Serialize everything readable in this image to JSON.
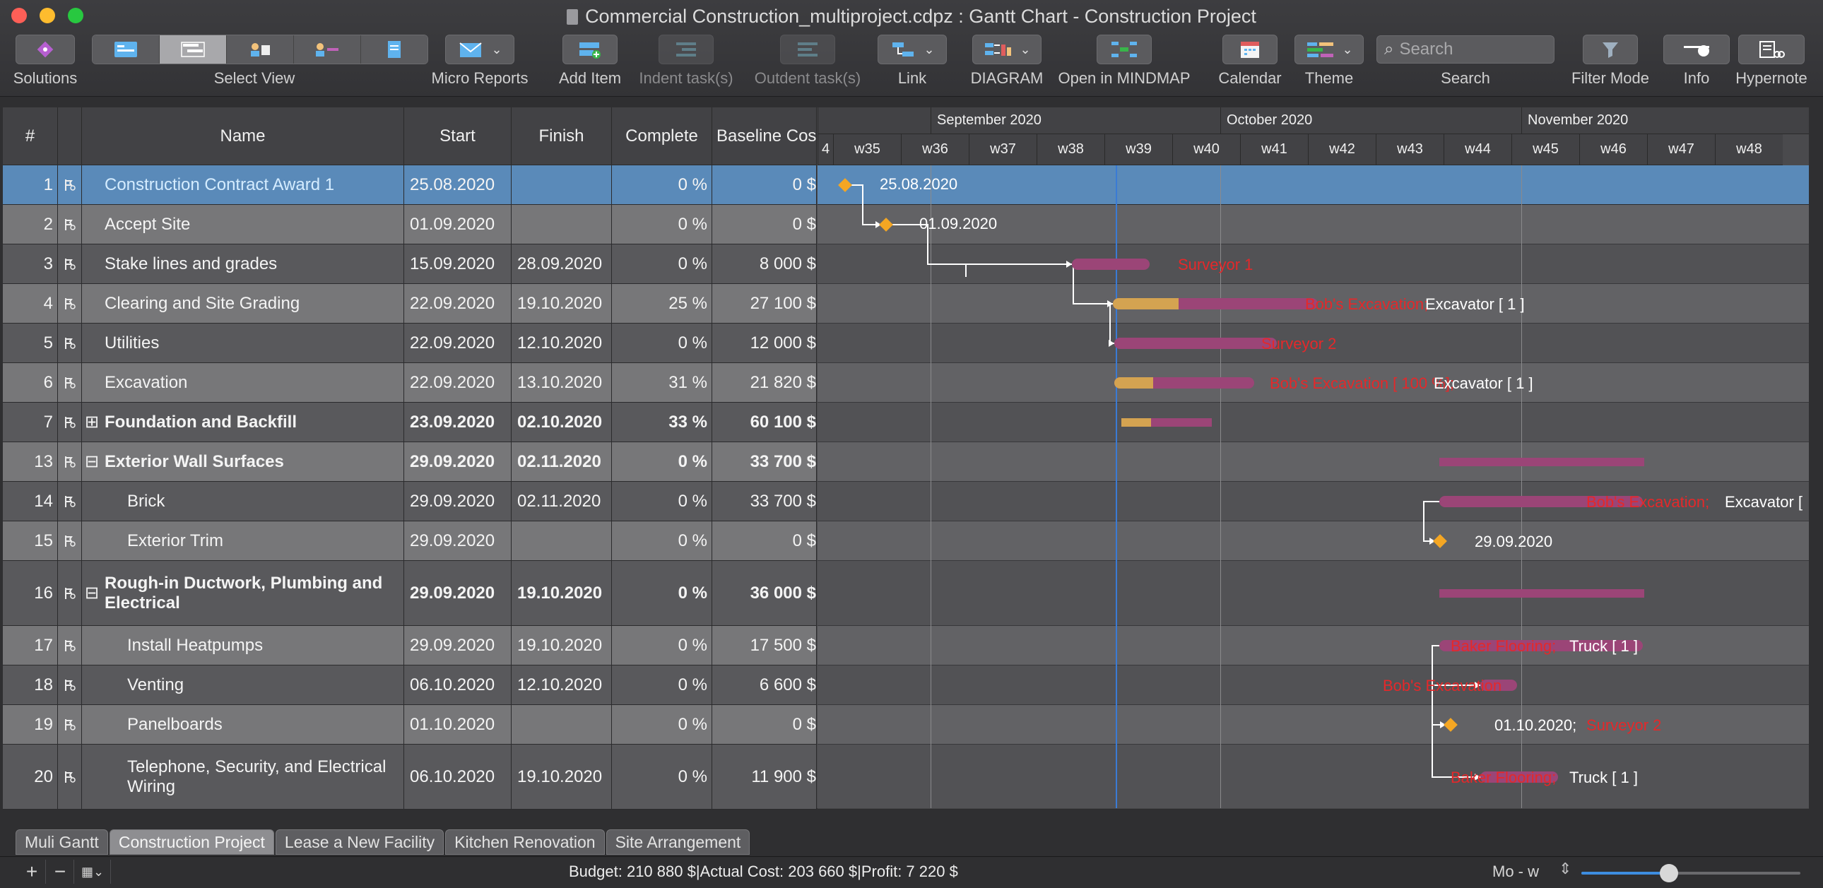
{
  "window": {
    "title": "Commercial Construction_multiproject.cdpz : Gantt Chart - Construction Project"
  },
  "toolbar": {
    "solutions": "Solutions",
    "select_view": "Select View",
    "micro_reports": "Micro Reports",
    "add_item": "Add Item",
    "indent": "Indent task(s)",
    "outdent": "Outdent task(s)",
    "link": "Link",
    "diagram": "DIAGRAM",
    "open_mindmap": "Open in MINDMAP",
    "calendar": "Calendar",
    "theme": "Theme",
    "search_label": "Search",
    "search_placeholder": "Search",
    "filter_mode": "Filter Mode",
    "info": "Info",
    "hypernote": "Hypernote"
  },
  "columns": {
    "num": "#",
    "name": "Name",
    "start": "Start",
    "finish": "Finish",
    "complete": "Complete",
    "baseline": "Baseline Cost"
  },
  "timeline": {
    "months": [
      "September 2020",
      "October 2020",
      "November 2020"
    ],
    "weeks": [
      "4",
      "w35",
      "w36",
      "w37",
      "w38",
      "w39",
      "w40",
      "w41",
      "w42",
      "w43",
      "w44",
      "w45",
      "w46",
      "w47",
      "w48"
    ]
  },
  "rows": [
    {
      "num": "1",
      "name": "Construction Contract Award 1",
      "start": "25.08.2020",
      "finish": "",
      "complete": "0 %",
      "baseline": "0 $"
    },
    {
      "num": "2",
      "name": "Accept Site",
      "start": "01.09.2020",
      "finish": "",
      "complete": "0 %",
      "baseline": "0 $"
    },
    {
      "num": "3",
      "name": "Stake lines and grades",
      "start": "15.09.2020",
      "finish": "28.09.2020",
      "complete": "0 %",
      "baseline": "8 000 $"
    },
    {
      "num": "4",
      "name": "Clearing and Site Grading",
      "start": "22.09.2020",
      "finish": "19.10.2020",
      "complete": "25 %",
      "baseline": "27 100 $"
    },
    {
      "num": "5",
      "name": "Utilities",
      "start": "22.09.2020",
      "finish": "12.10.2020",
      "complete": "0 %",
      "baseline": "12 000 $"
    },
    {
      "num": "6",
      "name": "Excavation",
      "start": "22.09.2020",
      "finish": "13.10.2020",
      "complete": "31 %",
      "baseline": "21 820 $"
    },
    {
      "num": "7",
      "name": "Foundation and Backfill",
      "start": "23.09.2020",
      "finish": "02.10.2020",
      "complete": "33 %",
      "baseline": "60 100 $"
    },
    {
      "num": "13",
      "name": "Exterior Wall Surfaces",
      "start": "29.09.2020",
      "finish": "02.11.2020",
      "complete": "0 %",
      "baseline": "33 700 $"
    },
    {
      "num": "14",
      "name": "Brick",
      "start": "29.09.2020",
      "finish": "02.11.2020",
      "complete": "0 %",
      "baseline": "33 700 $"
    },
    {
      "num": "15",
      "name": "Exterior Trim",
      "start": "29.09.2020",
      "finish": "",
      "complete": "0 %",
      "baseline": "0 $"
    },
    {
      "num": "16",
      "name": "Rough-in Ductwork, Plumbing and Electrical",
      "start": "29.09.2020",
      "finish": "19.10.2020",
      "complete": "0 %",
      "baseline": "36 000 $"
    },
    {
      "num": "17",
      "name": "Install Heatpumps",
      "start": "29.09.2020",
      "finish": "19.10.2020",
      "complete": "0 %",
      "baseline": "17 500 $"
    },
    {
      "num": "18",
      "name": "Venting",
      "start": "06.10.2020",
      "finish": "12.10.2020",
      "complete": "0 %",
      "baseline": "6 600 $"
    },
    {
      "num": "19",
      "name": "Panelboards",
      "start": "01.10.2020",
      "finish": "",
      "complete": "0 %",
      "baseline": "0 $"
    },
    {
      "num": "20",
      "name": "Telephone, Security, and Electrical Wiring",
      "start": "06.10.2020",
      "finish": "19.10.2020",
      "complete": "0 %",
      "baseline": "11 900 $"
    }
  ],
  "labels": {
    "r1_date": "25.08.2020",
    "r2_date": "01.09.2020",
    "r3_res": "Surveyor 1",
    "r4_res_red": "Bob's Excavation;",
    "r4_res_white": "Excavator [ 1 ]",
    "r5_res": "Surveyor 2",
    "r6_res_red": "Bob's Excavation [ 100 %];",
    "r6_res_white": "Excavator [ 1 ]",
    "r14_res_red": "Bob's Excavation;",
    "r14_res_white": "Excavator [",
    "r15_date": "29.09.2020",
    "r17_res_red": "Baker Flooring;",
    "r17_res_white": "Truck [ 1 ]",
    "r18_res": "Bob's Excavation",
    "r19_date": "01.10.2020;",
    "r19_res": "Surveyor 2",
    "r20_res_red": "Baker Flooring;",
    "r20_res_white": "Truck [ 1 ]"
  },
  "tabs": [
    "Muli Gantt",
    "Construction Project",
    "Lease a New Facility",
    "Kitchen Renovation",
    "Site Arrangement"
  ],
  "status": {
    "budget": "Budget: 210 880 $|Actual Cost: 203 660 $|Profit: 7 220 $",
    "zoom_label": "Mo - w",
    "zoom_level": 0.4
  }
}
